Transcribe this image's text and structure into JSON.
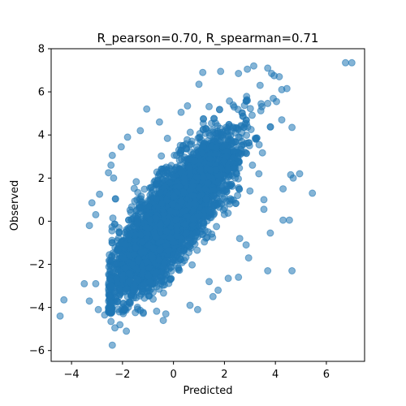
{
  "chart_data": {
    "type": "scatter",
    "title": "R_pearson=0.70, R_spearman=0.71",
    "xlabel": "Predicted",
    "ylabel": "Observed",
    "xlim": [
      -4.8,
      7.5
    ],
    "ylim": [
      -6.5,
      8.0
    ],
    "xticks": [
      -4,
      -2,
      0,
      2,
      4,
      6
    ],
    "yticks": [
      -6,
      -4,
      -2,
      0,
      2,
      4,
      6,
      8
    ],
    "grid": false,
    "color": "#1f77b4",
    "marker_alpha": 0.55,
    "series": [
      {
        "points": [
          [
            -4.3,
            -3.65
          ],
          [
            -4.45,
            -4.4
          ],
          [
            -3.5,
            -2.9
          ],
          [
            -3.3,
            -3.7
          ],
          [
            -3.05,
            -2.9
          ],
          [
            -2.4,
            -5.75
          ],
          [
            -2.45,
            -4.65
          ],
          [
            -2.1,
            -4.8
          ],
          [
            -0.4,
            -4.6
          ],
          [
            -0.3,
            -4.3
          ],
          [
            2.15,
            -2.65
          ],
          [
            2.55,
            -2.6
          ],
          [
            3.7,
            -2.3
          ],
          [
            4.65,
            -2.3
          ],
          [
            5.45,
            1.3
          ],
          [
            4.3,
            0.05
          ],
          [
            4.55,
            0.05
          ],
          [
            4.7,
            2.0
          ],
          [
            4.6,
            2.15
          ],
          [
            4.95,
            2.2
          ],
          [
            4.3,
            1.5
          ],
          [
            3.8,
            -0.55
          ],
          [
            4.25,
            4.7
          ],
          [
            4.65,
            4.35
          ],
          [
            4.25,
            6.1
          ],
          [
            4.45,
            6.15
          ],
          [
            3.85,
            6.85
          ],
          [
            2.9,
            7.05
          ],
          [
            3.15,
            7.2
          ],
          [
            3.4,
            6.3
          ],
          [
            3.7,
            7.1
          ],
          [
            3.95,
            6.75
          ],
          [
            4.15,
            6.7
          ],
          [
            6.75,
            7.35
          ],
          [
            7.0,
            7.35
          ],
          [
            2.55,
            6.85
          ],
          [
            1.85,
            6.95
          ],
          [
            1.15,
            6.9
          ],
          [
            1.0,
            6.35
          ],
          [
            -1.05,
            5.2
          ],
          [
            -1.8,
            3.9
          ],
          [
            -2.05,
            3.45
          ],
          [
            -2.4,
            3.05
          ],
          [
            -2.45,
            2.6
          ],
          [
            -2.55,
            2.25
          ],
          [
            -2.35,
            2.0
          ],
          [
            -2.9,
            1.25
          ],
          [
            -3.2,
            0.85
          ],
          [
            -3.05,
            0.3
          ],
          [
            -3.3,
            -0.2
          ],
          [
            2.3,
            3.6
          ],
          [
            2.8,
            3.2
          ],
          [
            3.1,
            2.6
          ],
          [
            3.35,
            2.2
          ],
          [
            3.0,
            1.4
          ],
          [
            3.55,
            1.0
          ],
          [
            2.6,
            -0.8
          ],
          [
            2.85,
            -1.1
          ],
          [
            2.95,
            -1.7
          ],
          [
            3.55,
            0.55
          ],
          [
            0.3,
            5.05
          ],
          [
            0.55,
            5.35
          ],
          [
            -0.55,
            4.6
          ],
          [
            -1.3,
            4.2
          ],
          [
            1.75,
            -3.2
          ],
          [
            1.55,
            -3.5
          ],
          [
            0.95,
            -4.1
          ],
          [
            0.65,
            -3.9
          ],
          [
            1.4,
            -2.8
          ],
          [
            -2.7,
            -4.35
          ],
          [
            -2.95,
            -4.1
          ],
          [
            -1.85,
            -5.1
          ],
          [
            -2.3,
            -4.95
          ]
        ]
      }
    ]
  }
}
